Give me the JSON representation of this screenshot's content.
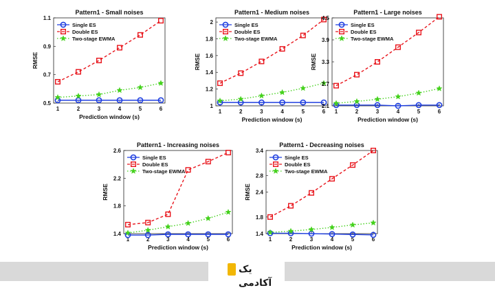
{
  "chart_data": [
    {
      "type": "line",
      "title": "Pattern1 - Small noises",
      "xlabel": "Prediction window (s)",
      "ylabel": "RMSE",
      "x": [
        1,
        2,
        3,
        4,
        5,
        6
      ],
      "ylim": [
        0.5,
        1.1
      ],
      "yticks": [
        "0.5",
        "0.7",
        "0.9",
        "1.1"
      ],
      "legend": "top-left",
      "grid": false,
      "series": [
        {
          "name": "Single ES",
          "color": "#1f3fe0",
          "values": [
            0.52,
            0.52,
            0.52,
            0.52,
            0.52,
            0.52
          ]
        },
        {
          "name": "Double ES",
          "color": "#e8141b",
          "values": [
            0.65,
            0.72,
            0.8,
            0.89,
            0.98,
            1.08
          ]
        },
        {
          "name": "Two-stage EWMA",
          "color": "#44d11c",
          "values": [
            0.54,
            0.55,
            0.56,
            0.59,
            0.61,
            0.64
          ]
        }
      ]
    },
    {
      "type": "line",
      "title": "Pattern1 - Medium noises",
      "xlabel": "Prediction window (s)",
      "ylabel": "RMSE",
      "x": [
        1,
        2,
        3,
        4,
        5,
        6
      ],
      "ylim": [
        1.0,
        2.05
      ],
      "yticks": [
        "1",
        "1.2",
        "1.4",
        "1.6",
        "1.8",
        "2"
      ],
      "legend": "top-left",
      "grid": false,
      "series": [
        {
          "name": "Single ES",
          "color": "#1f3fe0",
          "values": [
            1.04,
            1.04,
            1.04,
            1.04,
            1.04,
            1.04
          ]
        },
        {
          "name": "Double ES",
          "color": "#e8141b",
          "values": [
            1.27,
            1.39,
            1.53,
            1.68,
            1.84,
            2.03
          ]
        },
        {
          "name": "Two-stage EWMA",
          "color": "#44d11c",
          "values": [
            1.06,
            1.08,
            1.12,
            1.16,
            1.21,
            1.27
          ]
        }
      ]
    },
    {
      "type": "line",
      "title": "Pattern1 - Large noises",
      "xlabel": "Prediction window (s)",
      "ylabel": "RMSE",
      "x": [
        1,
        2,
        3,
        4,
        5,
        6
      ],
      "ylim": [
        2.1,
        4.5
      ],
      "yticks": [
        "2.1",
        "2.7",
        "3.3",
        "3.9",
        "4.5"
      ],
      "legend": "top-left",
      "grid": false,
      "series": [
        {
          "name": "Single ES",
          "color": "#1f3fe0",
          "values": [
            2.12,
            2.12,
            2.12,
            2.1,
            2.12,
            2.12
          ]
        },
        {
          "name": "Double ES",
          "color": "#e8141b",
          "values": [
            2.65,
            2.95,
            3.3,
            3.7,
            4.1,
            4.53
          ]
        },
        {
          "name": "Two-stage EWMA",
          "color": "#44d11c",
          "values": [
            2.17,
            2.22,
            2.28,
            2.35,
            2.45,
            2.57
          ]
        }
      ]
    },
    {
      "type": "line",
      "title": "Pattern1 - Increasing noises",
      "xlabel": "Prediction window (s)",
      "ylabel": "RMSE",
      "x": [
        1,
        2,
        3,
        4,
        5,
        6
      ],
      "ylim": [
        1.4,
        2.6
      ],
      "yticks": [
        "1.4",
        "1.8",
        "2.2",
        "2.6"
      ],
      "legend": "top-left",
      "grid": false,
      "series": [
        {
          "name": "Single ES",
          "color": "#1f3fe0",
          "values": [
            1.38,
            1.38,
            1.39,
            1.39,
            1.39,
            1.39
          ]
        },
        {
          "name": "Double ES",
          "color": "#e8141b",
          "values": [
            1.53,
            1.56,
            1.68,
            2.32,
            2.44,
            2.57
          ]
        },
        {
          "name": "Two-stage EWMA",
          "color": "#44d11c",
          "values": [
            1.41,
            1.45,
            1.5,
            1.55,
            1.62,
            1.71
          ]
        }
      ]
    },
    {
      "type": "line",
      "title": "Pattern1 - Decreasing noises",
      "xlabel": "Prediction window (s)",
      "ylabel": "RMSE",
      "x": [
        1,
        2,
        3,
        4,
        5,
        6
      ],
      "ylim": [
        1.4,
        3.4
      ],
      "yticks": [
        "1.4",
        "1.8",
        "2.4",
        "2.8",
        "3.4"
      ],
      "legend": "top-left",
      "grid": false,
      "series": [
        {
          "name": "Single ES",
          "color": "#1f3fe0",
          "values": [
            1.41,
            1.41,
            1.4,
            1.39,
            1.38,
            1.37
          ]
        },
        {
          "name": "Double ES",
          "color": "#e8141b",
          "values": [
            1.8,
            2.07,
            2.38,
            2.72,
            3.05,
            3.4
          ]
        },
        {
          "name": "Two-stage EWMA",
          "color": "#44d11c",
          "values": [
            1.43,
            1.46,
            1.5,
            1.55,
            1.61,
            1.66
          ]
        }
      ]
    }
  ],
  "footer": {
    "logo_label": "یک آکادمی",
    "logo_color": "#f2b705",
    "bar_color": "#d9d9d9"
  }
}
